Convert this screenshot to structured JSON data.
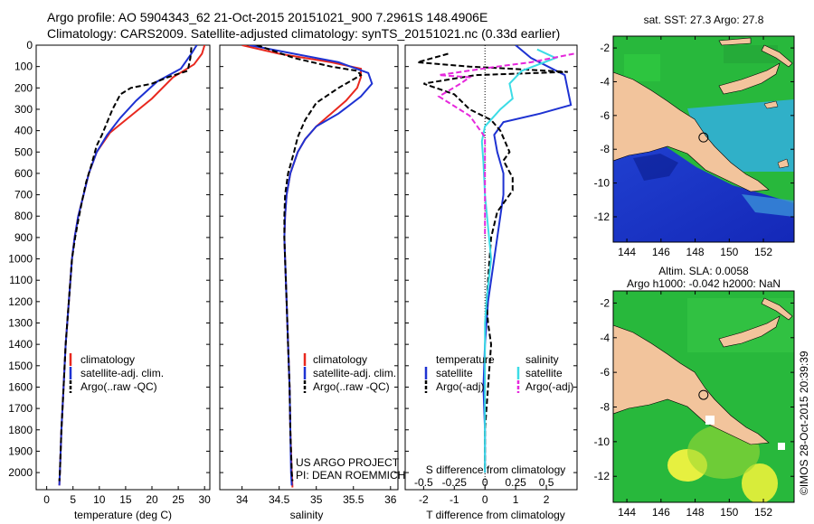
{
  "header": {
    "line1": "Argo profile: AO 5904343_62 21-Oct-2015 20151021_900 7.2961S 148.4906E",
    "line2": "Climatology: CARS2009. Satellite-adjusted climatology: synTS_20151021.nc (0.33d earlier)"
  },
  "depth_ticks": [
    0,
    100,
    200,
    300,
    400,
    500,
    600,
    700,
    800,
    900,
    1000,
    1100,
    1200,
    1300,
    1400,
    1500,
    1600,
    1700,
    1800,
    1900,
    2000
  ],
  "colors": {
    "red": "#e8281e",
    "blue": "#1e32d2",
    "black": "#000000",
    "cyan": "#3cdce6",
    "magenta": "#e628dc",
    "land": "#f2c49c"
  },
  "chart_data": [
    {
      "type": "line",
      "id": "temperature",
      "xlabel": "temperature (deg C)",
      "xlim": [
        -2,
        31
      ],
      "ylim": [
        2080,
        0
      ],
      "xticks": [
        0,
        5,
        10,
        15,
        20,
        25,
        30
      ],
      "legend": [
        "climatology",
        "satellite-adj. clim.",
        "Argo(..raw -QC)"
      ],
      "series": [
        {
          "name": "climatology",
          "color": "red",
          "dash": false,
          "points": [
            [
              30,
              0
            ],
            [
              29.5,
              40
            ],
            [
              28,
              90
            ],
            [
              24,
              150
            ],
            [
              20,
              250
            ],
            [
              16,
              330
            ],
            [
              12,
              410
            ],
            [
              9.5,
              500
            ],
            [
              8,
              600
            ],
            [
              7,
              700
            ],
            [
              6,
              800
            ],
            [
              5.3,
              900
            ],
            [
              4.8,
              1000
            ],
            [
              4.2,
              1200
            ],
            [
              3.6,
              1400
            ],
            [
              3.2,
              1600
            ],
            [
              2.8,
              1800
            ],
            [
              2.5,
              2000
            ],
            [
              2.4,
              2060
            ]
          ]
        },
        {
          "name": "satellite-adj. clim.",
          "color": "blue",
          "dash": false,
          "points": [
            [
              28.5,
              0
            ],
            [
              27.5,
              40
            ],
            [
              25.5,
              110
            ],
            [
              21,
              170
            ],
            [
              17,
              260
            ],
            [
              14,
              340
            ],
            [
              11.5,
              420
            ],
            [
              9.5,
              500
            ],
            [
              8,
              600
            ],
            [
              7,
              700
            ],
            [
              6,
              800
            ],
            [
              5.3,
              900
            ],
            [
              4.8,
              1000
            ],
            [
              4.2,
              1200
            ],
            [
              3.6,
              1400
            ],
            [
              3.2,
              1600
            ],
            [
              2.8,
              1800
            ],
            [
              2.5,
              2000
            ],
            [
              2.4,
              2060
            ]
          ]
        },
        {
          "name": "Argo(..raw -QC)",
          "color": "black",
          "dash": true,
          "points": [
            [
              27.5,
              10
            ],
            [
              27.3,
              60
            ],
            [
              26.8,
              120
            ],
            [
              23,
              150
            ],
            [
              20,
              180
            ],
            [
              16,
              200
            ],
            [
              14,
              230
            ],
            [
              12.5,
              300
            ],
            [
              11.5,
              360
            ],
            [
              10.5,
              420
            ],
            [
              9.5,
              470
            ],
            [
              8.5,
              560
            ],
            [
              7.5,
              640
            ],
            [
              6.8,
              720
            ],
            [
              6,
              820
            ],
            [
              5.4,
              900
            ],
            [
              4.8,
              1000
            ],
            [
              4.2,
              1200
            ],
            [
              3.6,
              1400
            ],
            [
              3.2,
              1600
            ],
            [
              2.8,
              1800
            ],
            [
              2.5,
              2000
            ],
            [
              2.4,
              2040
            ]
          ]
        }
      ]
    },
    {
      "type": "line",
      "id": "salinity",
      "xlabel": "salinity",
      "xlim": [
        33.7,
        36.1
      ],
      "ylim": [
        2080,
        0
      ],
      "xticks": [
        34,
        34.5,
        35,
        35.5,
        36
      ],
      "legend": [
        "climatology",
        "satellite-adj. clim.",
        "Argo(..raw -QC)"
      ],
      "series": [
        {
          "name": "climatology",
          "color": "red",
          "dash": false,
          "points": [
            [
              34.0,
              0
            ],
            [
              34.5,
              40
            ],
            [
              35.2,
              80
            ],
            [
              35.6,
              110
            ],
            [
              35.6,
              150
            ],
            [
              35.55,
              200
            ],
            [
              35.4,
              260
            ],
            [
              35.2,
              320
            ],
            [
              35.0,
              380
            ],
            [
              34.85,
              440
            ],
            [
              34.75,
              500
            ],
            [
              34.65,
              600
            ],
            [
              34.6,
              700
            ],
            [
              34.58,
              800
            ],
            [
              34.57,
              900
            ],
            [
              34.58,
              1000
            ],
            [
              34.6,
              1200
            ],
            [
              34.62,
              1400
            ],
            [
              34.64,
              1600
            ],
            [
              34.65,
              1800
            ],
            [
              34.67,
              2000
            ],
            [
              34.68,
              2070
            ]
          ]
        },
        {
          "name": "satellite-adj. clim.",
          "color": "blue",
          "dash": false,
          "points": [
            [
              34.1,
              0
            ],
            [
              34.7,
              40
            ],
            [
              35.3,
              80
            ],
            [
              35.7,
              130
            ],
            [
              35.75,
              180
            ],
            [
              35.6,
              240
            ],
            [
              35.3,
              320
            ],
            [
              35.0,
              380
            ],
            [
              34.85,
              440
            ],
            [
              34.75,
              500
            ],
            [
              34.65,
              600
            ],
            [
              34.6,
              700
            ],
            [
              34.58,
              800
            ],
            [
              34.57,
              900
            ],
            [
              34.58,
              1000
            ],
            [
              34.6,
              1200
            ],
            [
              34.62,
              1400
            ],
            [
              34.64,
              1600
            ],
            [
              34.65,
              1800
            ],
            [
              34.66,
              2000
            ],
            [
              34.67,
              2060
            ]
          ]
        },
        {
          "name": "Argo(..raw -QC)",
          "color": "black",
          "dash": true,
          "points": [
            [
              34.2,
              0
            ],
            [
              34.7,
              60
            ],
            [
              35.2,
              100
            ],
            [
              35.55,
              120
            ],
            [
              35.6,
              140
            ],
            [
              35.3,
              200
            ],
            [
              35.0,
              270
            ],
            [
              34.85,
              350
            ],
            [
              34.75,
              430
            ],
            [
              34.7,
              500
            ],
            [
              34.62,
              600
            ],
            [
              34.58,
              700
            ],
            [
              34.57,
              800
            ],
            [
              34.57,
              900
            ],
            [
              34.58,
              1000
            ],
            [
              34.6,
              1200
            ],
            [
              34.62,
              1400
            ],
            [
              34.64,
              1600
            ],
            [
              34.65,
              1800
            ],
            [
              34.67,
              2000
            ],
            [
              34.68,
              2040
            ]
          ]
        }
      ]
    },
    {
      "type": "line",
      "id": "difference",
      "xlabel": "T difference from climatology",
      "xlabel_top": "S difference from climatology",
      "xlim": [
        -2.6,
        3.0
      ],
      "ylim": [
        2080,
        0
      ],
      "xticks": [
        -2,
        -1,
        0,
        1,
        2
      ],
      "xticks_top": [
        "-0.5",
        "-0.25",
        "0",
        "0.25",
        "0.5"
      ],
      "legend_title_left": "temperature",
      "legend_title_right": "salinity",
      "legend": [
        "satellite",
        "Argo(-adj)",
        "satellite",
        "Argo(-adj)"
      ],
      "series": [
        {
          "name": "T satellite",
          "color": "blue",
          "dash": false,
          "points": [
            [
              1.0,
              0
            ],
            [
              1.5,
              60
            ],
            [
              2.6,
              140
            ],
            [
              2.8,
              280
            ],
            [
              1.8,
              320
            ],
            [
              0.6,
              360
            ],
            [
              0.3,
              420
            ],
            [
              0.4,
              500
            ],
            [
              0.6,
              600
            ],
            [
              0.6,
              700
            ],
            [
              0.5,
              800
            ],
            [
              0.4,
              900
            ],
            [
              0.3,
              1000
            ],
            [
              0.1,
              1200
            ],
            [
              0.0,
              1400
            ],
            [
              -0.05,
              1600
            ],
            [
              0.0,
              1800
            ],
            [
              0.0,
              2000
            ]
          ]
        },
        {
          "name": "T Argo(-adj)",
          "color": "black",
          "dash": true,
          "points": [
            [
              -1.2,
              40
            ],
            [
              -2.2,
              80
            ],
            [
              -0.5,
              100
            ],
            [
              0.8,
              110
            ],
            [
              2.7,
              125
            ],
            [
              -0.3,
              140
            ],
            [
              -2.0,
              180
            ],
            [
              -1.0,
              230
            ],
            [
              -0.5,
              300
            ],
            [
              0.2,
              350
            ],
            [
              0.5,
              400
            ],
            [
              0.8,
              500
            ],
            [
              0.6,
              540
            ],
            [
              0.9,
              620
            ],
            [
              0.9,
              680
            ],
            [
              0.4,
              780
            ],
            [
              0.2,
              900
            ],
            [
              0.15,
              1000
            ],
            [
              0.1,
              1100
            ],
            [
              0.05,
              1200
            ],
            [
              0.1,
              1300
            ],
            [
              0.2,
              1400
            ],
            [
              0.1,
              1600
            ],
            [
              0.0,
              1800
            ],
            [
              0.0,
              2000
            ]
          ]
        },
        {
          "name": "S satellite",
          "color": "cyan",
          "dash": false,
          "points": [
            [
              1.7,
              20
            ],
            [
              2.3,
              60
            ],
            [
              1.2,
              120
            ],
            [
              0.8,
              180
            ],
            [
              0.9,
              250
            ],
            [
              0.5,
              300
            ],
            [
              0.0,
              380
            ],
            [
              -0.1,
              450
            ],
            [
              -0.05,
              550
            ],
            [
              0.0,
              700
            ],
            [
              0.2,
              1000
            ],
            [
              0.05,
              1200
            ],
            [
              0.0,
              1300
            ],
            [
              0.0,
              1400
            ],
            [
              0.0,
              1600
            ],
            [
              0.0,
              1800
            ],
            [
              0.0,
              2000
            ]
          ]
        },
        {
          "name": "S Argo(-adj)",
          "color": "magenta",
          "dash": true,
          "points": [
            [
              2.9,
              40
            ],
            [
              1.5,
              80
            ],
            [
              0.4,
              100
            ],
            [
              -1.5,
              140
            ],
            [
              -0.5,
              150
            ],
            [
              -0.8,
              180
            ],
            [
              -1.5,
              240
            ],
            [
              -0.5,
              330
            ],
            [
              0.0,
              430
            ],
            [
              0.0,
              500
            ],
            [
              0.0,
              600
            ],
            [
              0.0,
              700
            ],
            [
              0.0,
              900
            ]
          ]
        }
      ]
    }
  ],
  "maps": [
    {
      "id": "sst-map",
      "title": "sat. SST: 27.3 Argo: 27.8",
      "xticks": [
        144,
        146,
        148,
        150,
        152
      ],
      "yticks": [
        -2,
        -4,
        -6,
        -8,
        -10,
        -12
      ],
      "lon_range": [
        143.2,
        153.8
      ],
      "lat_range": [
        -13.5,
        -1.3
      ],
      "float_lon": 148.49,
      "float_lat": -7.3
    },
    {
      "id": "sla-map",
      "title1": "Altim. SLA: 0.0058",
      "title2": "Argo h1000: -0.042 h2000: NaN",
      "xticks": [
        144,
        146,
        148,
        150,
        152
      ],
      "yticks": [
        -2,
        -4,
        -6,
        -8,
        -10,
        -12
      ],
      "lon_range": [
        143.2,
        153.8
      ],
      "lat_range": [
        -13.5,
        -1.3
      ],
      "float_lon": 148.49,
      "float_lat": -7.3
    }
  ],
  "credits": {
    "project": "US ARGO PROJECT",
    "pi": "PI: DEAN ROEMMICH",
    "stamp": "©IMOS 28-Oct-2015 20:39:39"
  }
}
